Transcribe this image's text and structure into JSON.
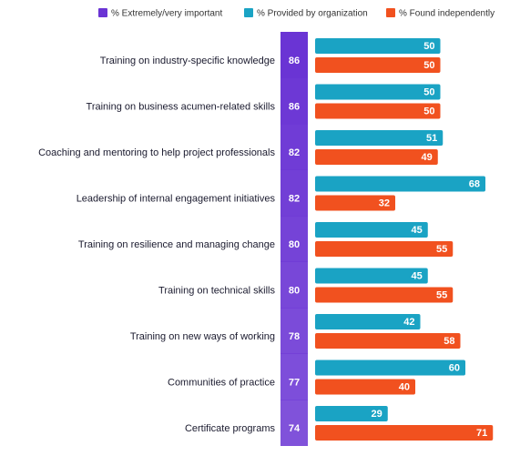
{
  "chart_data": {
    "type": "bar",
    "categories": [
      "Training on industry-specific knowledge",
      "Training on business acumen-related skills",
      "Coaching and mentoring to help project professionals",
      "Leadership of internal engagement initiatives",
      "Training on resilience and managing change",
      "Training on technical skills",
      "Training on new ways of working",
      "Communities of practice",
      "Certificate programs"
    ],
    "series": [
      {
        "name": "% Extremely/very important",
        "color": "#6a34d4",
        "values": [
          86,
          86,
          82,
          82,
          80,
          80,
          78,
          77,
          74
        ]
      },
      {
        "name": "% Provided by organization",
        "color": "#1aa3c4",
        "values": [
          50,
          50,
          51,
          68,
          45,
          45,
          42,
          60,
          29
        ]
      },
      {
        "name": "% Found independently",
        "color": "#f1511f",
        "values": [
          50,
          50,
          49,
          32,
          55,
          55,
          58,
          40,
          71
        ]
      }
    ]
  }
}
